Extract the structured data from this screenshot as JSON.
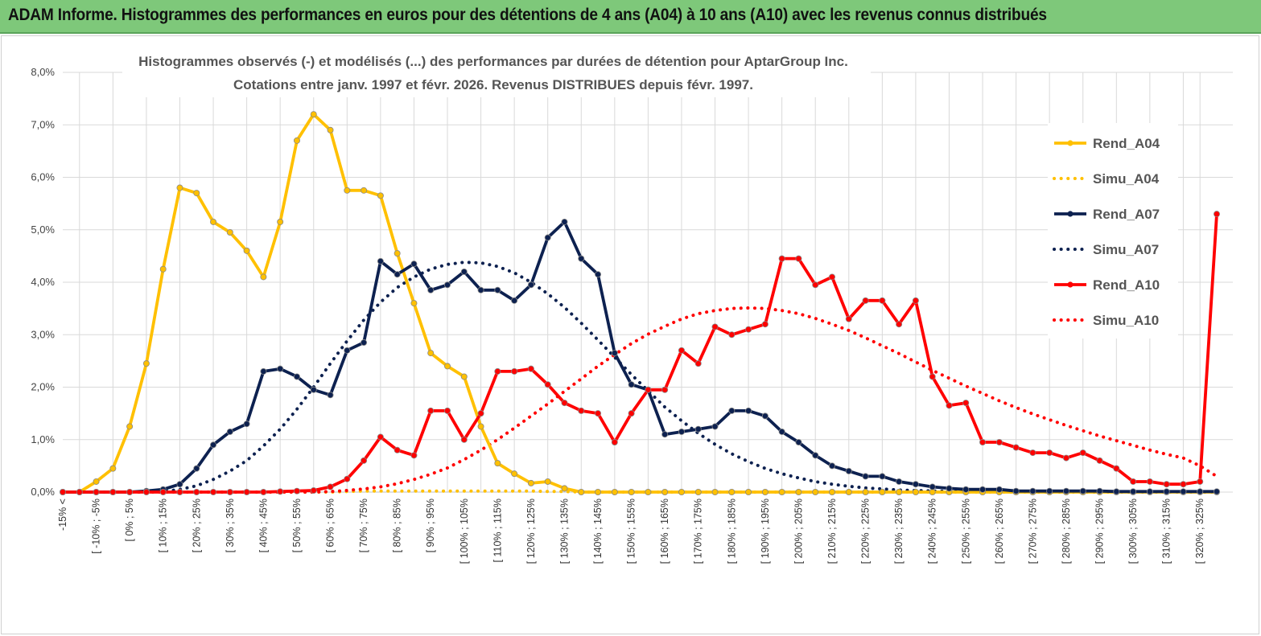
{
  "banner": {
    "text": "ADAM Informe. Histogrammes des performances en euros pour des détentions de 4 ans (A04) à 10 ans (A10) avec les revenus connus distribués"
  },
  "chart_data": {
    "type": "line",
    "title": "Histogrammes observés (-) et modélisés (...) des performances par durées de détention pour AptarGroup Inc.",
    "subtitle": "Cotations entre janv. 1997 et févr. 2026. Revenus DISTRIBUES depuis févr. 1997.",
    "xlabel": "",
    "ylabel": "",
    "ylim": [
      0,
      8
    ],
    "yticks": [
      "0,0%",
      "1,0%",
      "2,0%",
      "3,0%",
      "4,0%",
      "5,0%",
      "6,0%",
      "7,0%",
      "8,0%"
    ],
    "grid": true,
    "legend_position": "right",
    "x_labels": [
      "-15% <",
      "[ -10% ; -5%",
      "[ 0% ; 5%",
      "[ 10% ; 15%",
      "[ 20% ; 25%",
      "[ 30% ; 35%",
      "[ 40% ; 45%",
      "[ 50% ; 55%",
      "[ 60% ; 65%",
      "[ 70% ; 75%",
      "[ 80% ; 85%",
      "[ 90% ; 95%",
      "[ 100% ; 105%",
      "[ 110% ; 115%",
      "[ 120% ; 125%",
      "[ 130% ; 135%",
      "[ 140% ; 145%",
      "[ 150% ; 155%",
      "[ 160% ; 165%",
      "[ 170% ; 175%",
      "[ 180% ; 185%",
      "[ 190% ; 195%",
      "[ 200% ; 205%",
      "[ 210% ; 215%",
      "[ 220% ; 225%",
      "[ 230% ; 235%",
      "[ 240% ; 245%",
      "[ 250% ; 255%",
      "[ 260% ; 265%",
      "[ 270% ; 275%",
      "[ 280% ; 285%",
      "[ 290% ; 295%",
      "[ 300% ; 305%",
      "[ 310% ; 315%",
      "[ 320% ; 325%"
    ],
    "series": [
      {
        "name": "Rend_A04",
        "color": "#ffc000",
        "style": "solid",
        "markers": true,
        "values": [
          0,
          0,
          0.2,
          0.45,
          1.25,
          2.45,
          4.25,
          5.8,
          5.7,
          5.15,
          4.95,
          4.6,
          4.1,
          5.15,
          6.7,
          7.2,
          6.9,
          5.75,
          5.75,
          5.65,
          4.55,
          3.6,
          2.65,
          2.4,
          2.2,
          1.25,
          0.55,
          0.35,
          0.17,
          0.2,
          0.07,
          0,
          0,
          0,
          0,
          0,
          0,
          0,
          0,
          0,
          0,
          0,
          0,
          0,
          0,
          0,
          0,
          0,
          0,
          0,
          0,
          0,
          0,
          0,
          0,
          0,
          0,
          0,
          0,
          0,
          0,
          0,
          0,
          0,
          0,
          0,
          0,
          0,
          0,
          0
        ]
      },
      {
        "name": "Simu_A04",
        "color": "#ffc000",
        "style": "dotted",
        "markers": false,
        "values": [
          0,
          0,
          0,
          0,
          0,
          0,
          0,
          0,
          0,
          0,
          0,
          0,
          0,
          0,
          0,
          0,
          0,
          0.01,
          0.02,
          0.02,
          0.02,
          0.02,
          0.02,
          0.02,
          0.02,
          0.02,
          0.02,
          0.02,
          0.02,
          0.01,
          0.01,
          0,
          0,
          0,
          0,
          0,
          0,
          0,
          0,
          0,
          0,
          0,
          0,
          0,
          0,
          0,
          0,
          0,
          0,
          0,
          0,
          0,
          0,
          0,
          0,
          0,
          0,
          0,
          0,
          0,
          0,
          0,
          0,
          0,
          0,
          0,
          0,
          0,
          0,
          0
        ]
      },
      {
        "name": "Rend_A07",
        "color": "#0d2150",
        "style": "solid",
        "markers": true,
        "values": [
          0,
          0,
          0,
          0,
          0,
          0.02,
          0.05,
          0.15,
          0.45,
          0.9,
          1.15,
          1.3,
          2.3,
          2.35,
          2.2,
          1.95,
          1.85,
          2.7,
          2.85,
          4.4,
          4.15,
          4.35,
          3.85,
          3.95,
          4.2,
          3.85,
          3.85,
          3.65,
          3.95,
          4.85,
          5.15,
          4.45,
          4.15,
          2.65,
          2.05,
          1.95,
          1.1,
          1.15,
          1.2,
          1.25,
          1.55,
          1.55,
          1.45,
          1.15,
          0.95,
          0.7,
          0.5,
          0.4,
          0.3,
          0.3,
          0.2,
          0.15,
          0.1,
          0.07,
          0.05,
          0.05,
          0.05,
          0.02,
          0.02,
          0.02,
          0.02,
          0.02,
          0.02,
          0.01,
          0.01,
          0.01,
          0.01,
          0.01,
          0.01,
          0.01
        ]
      },
      {
        "name": "Simu_A07",
        "color": "#0d2150",
        "style": "dotted",
        "markers": false,
        "values": [
          0,
          0,
          0,
          0,
          0,
          0,
          0.01,
          0.05,
          0.12,
          0.24,
          0.4,
          0.6,
          0.88,
          1.2,
          1.58,
          2.0,
          2.45,
          2.88,
          3.28,
          3.62,
          3.9,
          4.1,
          4.25,
          4.34,
          4.38,
          4.37,
          4.3,
          4.18,
          4.0,
          3.78,
          3.52,
          3.22,
          2.9,
          2.57,
          2.24,
          1.93,
          1.62,
          1.36,
          1.12,
          0.91,
          0.73,
          0.58,
          0.45,
          0.35,
          0.27,
          0.2,
          0.15,
          0.11,
          0.08,
          0.06,
          0.04,
          0.03,
          0.02,
          0.015,
          0.01,
          0.01,
          0.01,
          0.01,
          0,
          0,
          0,
          0,
          0,
          0,
          0,
          0,
          0,
          0,
          0,
          0
        ]
      },
      {
        "name": "Rend_A10",
        "color": "#ff0000",
        "style": "solid",
        "markers": true,
        "values": [
          0,
          0,
          0,
          0,
          0,
          0,
          0,
          0,
          0,
          0,
          0,
          0,
          0,
          0.01,
          0.02,
          0.03,
          0.1,
          0.25,
          0.6,
          1.05,
          0.8,
          0.7,
          1.55,
          1.55,
          1.0,
          1.5,
          2.3,
          2.3,
          2.35,
          2.05,
          1.7,
          1.55,
          1.5,
          0.95,
          1.5,
          1.95,
          1.95,
          2.7,
          2.45,
          3.15,
          3.0,
          3.1,
          3.2,
          4.45,
          4.45,
          3.95,
          4.1,
          3.3,
          3.65,
          3.65,
          3.2,
          3.65,
          2.2,
          1.65,
          1.7,
          0.95,
          0.95,
          0.85,
          0.75,
          0.75,
          0.65,
          0.75,
          0.6,
          0.45,
          0.2,
          0.2,
          0.15,
          0.15,
          0.2,
          5.3
        ]
      },
      {
        "name": "Simu_A10",
        "color": "#ff0000",
        "style": "dotted",
        "markers": false,
        "values": [
          0,
          0,
          0,
          0,
          0,
          0,
          0,
          0,
          0,
          0,
          0,
          0,
          0,
          0,
          0,
          0,
          0.01,
          0.03,
          0.06,
          0.1,
          0.16,
          0.24,
          0.34,
          0.46,
          0.62,
          0.8,
          1.0,
          1.22,
          1.45,
          1.68,
          1.92,
          2.16,
          2.4,
          2.62,
          2.83,
          3.01,
          3.16,
          3.3,
          3.4,
          3.46,
          3.5,
          3.51,
          3.5,
          3.46,
          3.4,
          3.31,
          3.2,
          3.08,
          2.94,
          2.79,
          2.64,
          2.48,
          2.32,
          2.17,
          2.02,
          1.88,
          1.74,
          1.61,
          1.49,
          1.38,
          1.27,
          1.17,
          1.07,
          0.98,
          0.89,
          0.8,
          0.72,
          0.65,
          0.5,
          0.3
        ]
      }
    ]
  }
}
